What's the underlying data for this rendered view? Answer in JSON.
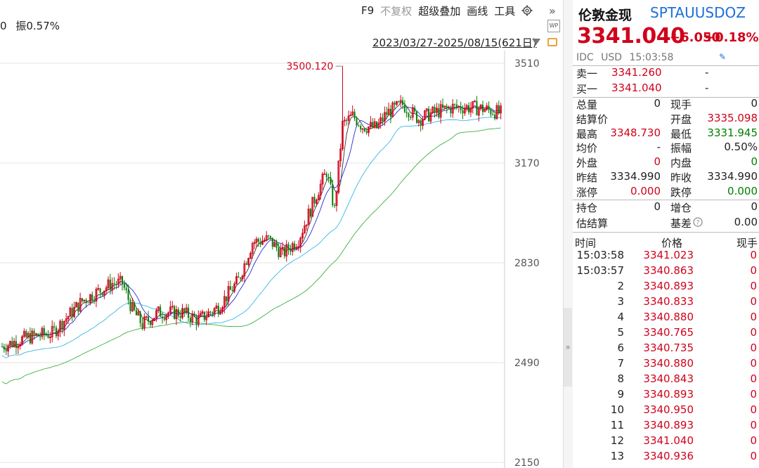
{
  "header": {
    "left_truncated": "0",
    "amplitude_label": "振",
    "amplitude_value": "0.57%",
    "toolbar": {
      "f9": "F9",
      "no_adjust": "不复权",
      "overlay": "超级叠加",
      "draw": "画线",
      "tools": "工具"
    },
    "date_range": "2023/03/27-2025/08/15(621日)"
  },
  "chart_data": {
    "type": "candlestick",
    "y_axis_ticks": [
      3510,
      3170,
      2830,
      2490,
      2150
    ],
    "ylim": [
      2150,
      3510
    ],
    "peak_label": "3500.120",
    "ma_colors": [
      "#333333",
      "#2a2ad4",
      "#39b8e6",
      "#3cb043"
    ],
    "up_color": "#d0021b",
    "down_color": "#008000"
  },
  "quote": {
    "name": "伦敦金现",
    "code": "SPTAUUSDOZ",
    "last": "3341.040",
    "change": "+6.050",
    "change_display": "+6.050",
    "change_pct": "+0.18%",
    "source": "IDC",
    "currency": "USD",
    "time": "15:03:58",
    "orderbook": [
      {
        "label": "卖一",
        "price": "3341.260",
        "vol": "-"
      },
      {
        "label": "买一",
        "price": "3341.040",
        "vol": "-"
      }
    ],
    "stats": [
      {
        "l1": "总量",
        "v1": "0",
        "c1": "",
        "l2": "现手",
        "v2": "0",
        "c2": ""
      },
      {
        "l1": "结算价",
        "v1": "",
        "c1": "",
        "l2": "开盘",
        "v2": "3335.098",
        "c2": "red"
      },
      {
        "l1": "最高",
        "v1": "3348.730",
        "c1": "red",
        "l2": "最低",
        "v2": "3331.945",
        "c2": "green"
      },
      {
        "l1": "均价",
        "v1": "-",
        "c1": "",
        "l2": "振幅",
        "v2": "0.50%",
        "c2": ""
      },
      {
        "l1": "外盘",
        "v1": "0",
        "c1": "red",
        "l2": "内盘",
        "v2": "0",
        "c2": "green"
      },
      {
        "l1": "昨结",
        "v1": "3334.990",
        "c1": "",
        "l2": "昨收",
        "v2": "3334.990",
        "c2": ""
      },
      {
        "l1": "涨停",
        "v1": "0.000",
        "c1": "red",
        "l2": "跌停",
        "v2": "0.000",
        "c2": "green"
      }
    ],
    "stats2": [
      {
        "l1": "持仓",
        "v1": "0",
        "l2": "增仓",
        "v2": "0"
      },
      {
        "l1": "估结算",
        "v1": "",
        "l2": "基差",
        "v2": "0.00"
      }
    ]
  },
  "ticks": {
    "headers": {
      "time": "时间",
      "price": "价格",
      "volume": "现手"
    },
    "rows": [
      {
        "time": "15:03:58",
        "price": "3341.023",
        "vol": "0"
      },
      {
        "time": "15:03:57",
        "price": "3340.863",
        "vol": "0"
      },
      {
        "time": "2",
        "price": "3340.893",
        "vol": "0"
      },
      {
        "time": "3",
        "price": "3340.833",
        "vol": "0"
      },
      {
        "time": "4",
        "price": "3340.880",
        "vol": "0"
      },
      {
        "time": "5",
        "price": "3340.765",
        "vol": "0"
      },
      {
        "time": "6",
        "price": "3340.735",
        "vol": "0"
      },
      {
        "time": "7",
        "price": "3340.880",
        "vol": "0"
      },
      {
        "time": "8",
        "price": "3340.843",
        "vol": "0"
      },
      {
        "time": "9",
        "price": "3340.893",
        "vol": "0"
      },
      {
        "time": "10",
        "price": "3340.950",
        "vol": "0"
      },
      {
        "time": "11",
        "price": "3340.893",
        "vol": "0"
      },
      {
        "time": "12",
        "price": "3341.040",
        "vol": "0"
      },
      {
        "time": "13",
        "price": "3340.936",
        "vol": "0"
      }
    ]
  }
}
